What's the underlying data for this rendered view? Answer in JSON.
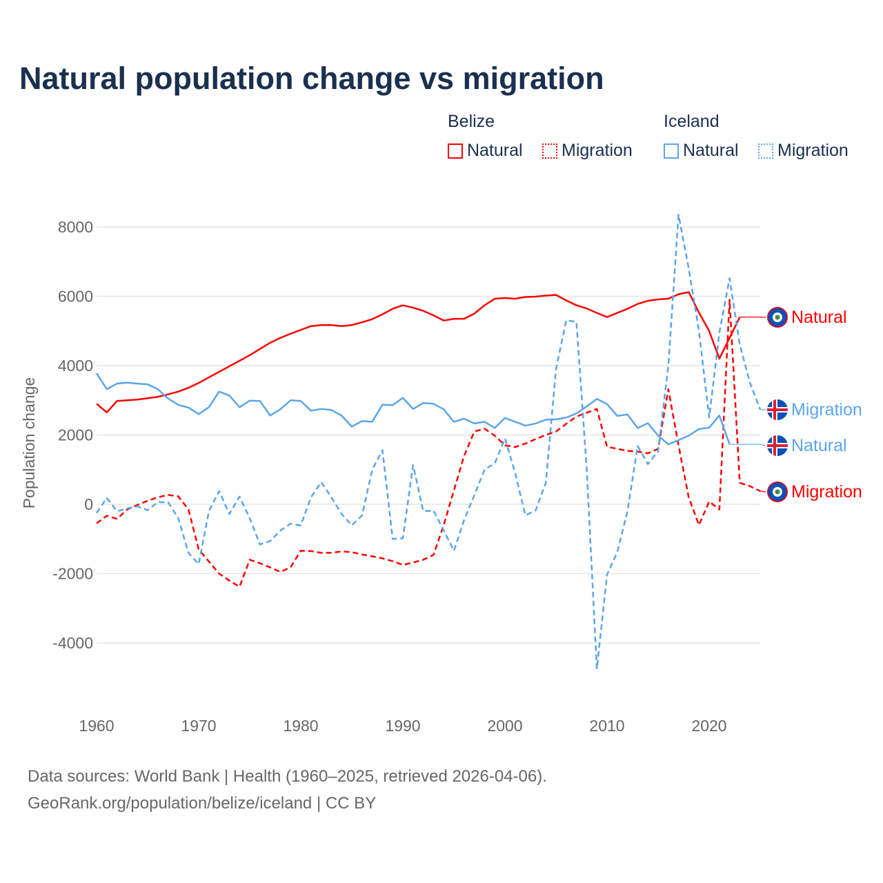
{
  "title": "Natural population change vs migration",
  "legend": {
    "groups": [
      {
        "name": "Belize",
        "items": [
          {
            "label": "Natural",
            "style": "solid",
            "color": "#ff0000"
          },
          {
            "label": "Migration",
            "style": "dotted",
            "color": "#ff0000"
          }
        ]
      },
      {
        "name": "Iceland",
        "items": [
          {
            "label": "Natural",
            "style": "solid",
            "color": "#5aa5eb"
          },
          {
            "label": "Migration",
            "style": "dotted",
            "color": "#5aa5eb"
          }
        ]
      }
    ]
  },
  "footer": {
    "line1": "Data sources: World Bank | Health (1960–2025, retrieved 2026-04-06).",
    "line2": "GeoRank.org/population/belize/iceland | CC BY"
  },
  "chart_data": {
    "type": "line",
    "title": "Natural population change vs migration",
    "xlabel": "",
    "ylabel": "Population change",
    "xlim": [
      1960,
      2025
    ],
    "ylim": [
      -5000,
      8500
    ],
    "xticks": [
      1960,
      1970,
      1980,
      1990,
      2000,
      2010,
      2020
    ],
    "xtick_labels": [
      "1960",
      "1970",
      "1980",
      "1990",
      "2000",
      "2010",
      "2020"
    ],
    "yticks": [
      8000,
      6000,
      4000,
      2000,
      0,
      -2000,
      -4000
    ],
    "ytick_labels": [
      "8000",
      "6000",
      "4000",
      "2000",
      "0",
      "-2000",
      "-4000"
    ],
    "grid": true,
    "legend_position": "top-right",
    "series": [
      {
        "name": "Belize Natural",
        "end_label": "Natural",
        "flag": "belize",
        "color": "#ff0000",
        "dash": false,
        "start": 1960,
        "values": [
          2900,
          2650,
          2980,
          3000,
          3020,
          3060,
          3100,
          3170,
          3250,
          3360,
          3500,
          3660,
          3820,
          3980,
          4140,
          4300,
          4480,
          4660,
          4800,
          4920,
          5030,
          5140,
          5170,
          5170,
          5140,
          5170,
          5250,
          5340,
          5480,
          5640,
          5740,
          5670,
          5580,
          5450,
          5300,
          5350,
          5350,
          5500,
          5740,
          5930,
          5950,
          5930,
          5980,
          5990,
          6020,
          6040,
          5880,
          5740,
          5650,
          5520,
          5400,
          5520,
          5640,
          5780,
          5870,
          5910,
          5930,
          6060,
          6120,
          5530,
          5000,
          4200,
          4800,
          5400
        ]
      },
      {
        "name": "Belize Migration",
        "end_label": "Migration",
        "flag": "belize",
        "color": "#ff0000",
        "dash": true,
        "start": 1960,
        "values": [
          -550,
          -330,
          -420,
          -150,
          -20,
          100,
          200,
          270,
          230,
          -150,
          -1300,
          -1650,
          -2000,
          -2200,
          -2380,
          -1600,
          -1700,
          -1820,
          -1950,
          -1820,
          -1340,
          -1350,
          -1400,
          -1400,
          -1360,
          -1380,
          -1450,
          -1500,
          -1560,
          -1640,
          -1750,
          -1680,
          -1600,
          -1460,
          -600,
          400,
          1400,
          2100,
          2180,
          1980,
          1700,
          1650,
          1750,
          1880,
          2000,
          2100,
          2320,
          2530,
          2640,
          2750,
          1660,
          1600,
          1540,
          1520,
          1470,
          1600,
          3320,
          1700,
          200,
          -600,
          80,
          -150,
          5900,
          620,
          520,
          380
        ]
      },
      {
        "name": "Iceland Natural",
        "end_label": "Natural",
        "flag": "iceland",
        "color": "#5aa5eb",
        "dash": false,
        "start": 1960,
        "values": [
          3780,
          3320,
          3480,
          3510,
          3480,
          3460,
          3320,
          3050,
          2870,
          2790,
          2600,
          2800,
          3250,
          3140,
          2800,
          2990,
          2980,
          2560,
          2740,
          3000,
          2980,
          2700,
          2750,
          2720,
          2560,
          2240,
          2400,
          2380,
          2870,
          2860,
          3070,
          2750,
          2920,
          2900,
          2740,
          2380,
          2470,
          2330,
          2380,
          2200,
          2490,
          2380,
          2270,
          2330,
          2440,
          2450,
          2500,
          2620,
          2820,
          3040,
          2890,
          2550,
          2590,
          2200,
          2340,
          1980,
          1730,
          1850,
          1980,
          2170,
          2210,
          2560,
          1730
        ]
      },
      {
        "name": "Iceland Migration",
        "end_label": "Migration",
        "flag": "iceland",
        "color": "#5aa5eb",
        "dash": true,
        "start": 1960,
        "values": [
          -250,
          180,
          -200,
          -120,
          -60,
          -170,
          60,
          60,
          -400,
          -1400,
          -1730,
          -200,
          380,
          -280,
          220,
          -400,
          -1160,
          -1060,
          -760,
          -560,
          -610,
          200,
          640,
          200,
          -280,
          -610,
          -320,
          1000,
          1560,
          -1000,
          -980,
          1130,
          -200,
          -180,
          -750,
          -1340,
          -450,
          260,
          1000,
          1180,
          1900,
          900,
          -320,
          -180,
          620,
          3900,
          5310,
          5260,
          1050,
          -4750,
          -2030,
          -1380,
          -200,
          1680,
          1160,
          1530,
          4000,
          8350,
          6800,
          5000,
          2500,
          4950,
          6520,
          4600,
          3500,
          2730
        ]
      }
    ]
  }
}
